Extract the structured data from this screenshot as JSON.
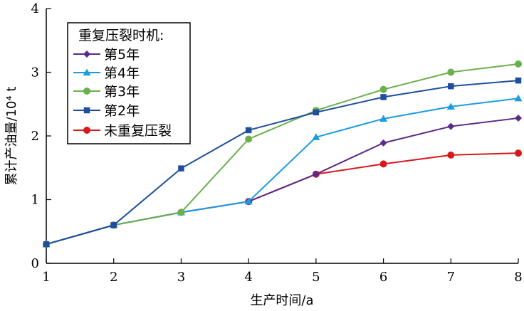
{
  "chart_data": {
    "type": "line",
    "xlabel": "生产时间/a",
    "ylabel": "累计产油量/10⁴ t",
    "xlim": [
      1,
      8
    ],
    "ylim": [
      0,
      4
    ],
    "x_ticks": [
      "1",
      "2",
      "3",
      "4",
      "5",
      "6",
      "7",
      "8"
    ],
    "y_ticks": [
      "0",
      "1",
      "2",
      "3",
      "4"
    ],
    "grid": false,
    "legend_title": "重复压裂时机:",
    "legend_position": "top-left",
    "series": [
      {
        "name": "第5年",
        "color": "#5b2a86",
        "marker": "diamond",
        "x": [
          1,
          2,
          3,
          4,
          5,
          6,
          7,
          8
        ],
        "y": [
          0.3,
          0.6,
          0.8,
          0.97,
          1.4,
          1.89,
          2.15,
          2.28
        ]
      },
      {
        "name": "第4年",
        "color": "#1a9ce0",
        "marker": "triangle",
        "x": [
          1,
          2,
          3,
          4,
          5,
          6,
          7,
          8
        ],
        "y": [
          0.3,
          0.6,
          0.8,
          0.97,
          1.98,
          2.27,
          2.46,
          2.59
        ]
      },
      {
        "name": "第3年",
        "color": "#6ab04c",
        "marker": "circle",
        "x": [
          1,
          2,
          3,
          4,
          5,
          6,
          7,
          8
        ],
        "y": [
          0.3,
          0.6,
          0.8,
          1.95,
          2.4,
          2.73,
          3.0,
          3.13
        ]
      },
      {
        "name": "第2年",
        "color": "#1f4e9e",
        "marker": "square",
        "x": [
          1,
          2,
          3,
          4,
          5,
          6,
          7,
          8
        ],
        "y": [
          0.3,
          0.6,
          1.49,
          2.09,
          2.37,
          2.61,
          2.78,
          2.87
        ]
      },
      {
        "name": "未重复压裂",
        "color": "#d7191c",
        "marker": "circle",
        "x": [
          1,
          2,
          3,
          4,
          5,
          6,
          7,
          8
        ],
        "y": [
          0.3,
          0.6,
          0.8,
          0.97,
          1.4,
          1.56,
          1.7,
          1.73
        ]
      }
    ]
  }
}
